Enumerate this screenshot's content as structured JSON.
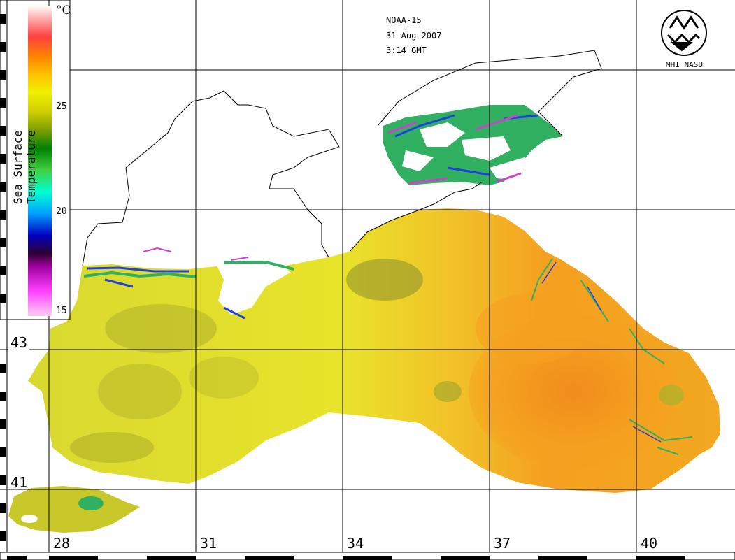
{
  "header": {
    "satellite": "NOAA-15",
    "date": "31 Aug 2007",
    "time": "3:14 GMT"
  },
  "colorbar": {
    "title": "Sea Surface Temperature",
    "unit": "°C",
    "ticks": [
      "25",
      "20",
      "15"
    ],
    "colors": [
      "#ffd0f0",
      "#ff40ff",
      "#a000a0",
      "#300030",
      "#0000c0",
      "#00a0ff",
      "#00ffd0",
      "#40d040",
      "#008000",
      "#80a000",
      "#d0d000",
      "#f0f000",
      "#ffc000",
      "#ff8000",
      "#ff4040",
      "#ffb0b0",
      "#ffffff"
    ]
  },
  "grid": {
    "latitude_labels": [
      "43",
      "41"
    ],
    "longitude_labels": [
      "28",
      "31",
      "34",
      "37",
      "40"
    ]
  },
  "logo": {
    "name": "MHI NASU"
  },
  "palette": {
    "sea_yellow": "#e6e62a",
    "sea_olive": "#b4b42c",
    "sea_orange": "#f5a020",
    "sea_deep_orange": "#f08a1a",
    "cloud_magenta": "#d040d0",
    "cloud_blue": "#2040e0",
    "cloud_green": "#30b060",
    "land": "#ffffff",
    "coast": "#000000"
  }
}
